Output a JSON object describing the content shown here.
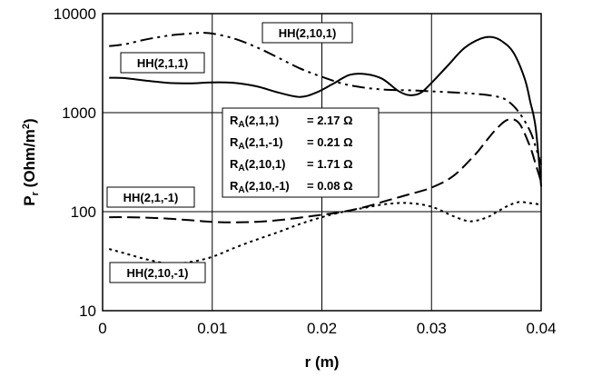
{
  "chart_data": {
    "type": "line",
    "xlabel": "r (m)",
    "ylabel": "P",
    "ylabel_sub": "r",
    "ylabel_unit": " (Ohm/m",
    "ylabel_unit_sup": "2",
    "ylabel_close": ")",
    "xlim": [
      0,
      0.04
    ],
    "ylim": [
      10,
      10000
    ],
    "yscale": "log",
    "grid": true,
    "xticks": [
      0,
      0.01,
      0.02,
      0.03,
      0.04
    ],
    "xtick_labels": [
      "0",
      "0.01",
      "0.02",
      "0.03",
      "0.04"
    ],
    "yticks": [
      10,
      100,
      1000,
      10000
    ],
    "ytick_labels": [
      "10",
      "100",
      "1000",
      "10000"
    ],
    "series": [
      {
        "name": "HH(2,1,1)",
        "dash": "solid",
        "points": [
          [
            0.0006,
            2250
          ],
          [
            0.002,
            2230
          ],
          [
            0.004,
            2100
          ],
          [
            0.006,
            2000
          ],
          [
            0.008,
            1980
          ],
          [
            0.01,
            2020
          ],
          [
            0.012,
            2000
          ],
          [
            0.014,
            1850
          ],
          [
            0.016,
            1600
          ],
          [
            0.018,
            1440
          ],
          [
            0.0195,
            1600
          ],
          [
            0.021,
            1950
          ],
          [
            0.0225,
            2400
          ],
          [
            0.024,
            2450
          ],
          [
            0.0255,
            2200
          ],
          [
            0.027,
            1650
          ],
          [
            0.028,
            1500
          ],
          [
            0.029,
            1580
          ],
          [
            0.03,
            2000
          ],
          [
            0.0315,
            3000
          ],
          [
            0.033,
            4500
          ],
          [
            0.0345,
            5600
          ],
          [
            0.0355,
            5800
          ],
          [
            0.0365,
            5200
          ],
          [
            0.0375,
            4000
          ],
          [
            0.0385,
            2200
          ],
          [
            0.039,
            1300
          ],
          [
            0.0395,
            700
          ],
          [
            0.04,
            180
          ]
        ]
      },
      {
        "name": "HH(2,10,1)",
        "dash": "dashdotdot",
        "points": [
          [
            0.0006,
            4700
          ],
          [
            0.002,
            4900
          ],
          [
            0.004,
            5500
          ],
          [
            0.006,
            6000
          ],
          [
            0.008,
            6300
          ],
          [
            0.009,
            6400
          ],
          [
            0.01,
            6300
          ],
          [
            0.012,
            5600
          ],
          [
            0.014,
            4600
          ],
          [
            0.016,
            3600
          ],
          [
            0.018,
            2800
          ],
          [
            0.02,
            2300
          ],
          [
            0.022,
            1950
          ],
          [
            0.024,
            1780
          ],
          [
            0.026,
            1700
          ],
          [
            0.028,
            1680
          ],
          [
            0.03,
            1640
          ],
          [
            0.032,
            1600
          ],
          [
            0.034,
            1550
          ],
          [
            0.036,
            1450
          ],
          [
            0.037,
            1300
          ],
          [
            0.038,
            1000
          ],
          [
            0.039,
            650
          ],
          [
            0.0395,
            450
          ],
          [
            0.04,
            300
          ]
        ]
      },
      {
        "name": "HH(2,1,-1)",
        "dash": "dash",
        "points": [
          [
            0.0006,
            88
          ],
          [
            0.002,
            88
          ],
          [
            0.004,
            87
          ],
          [
            0.006,
            85
          ],
          [
            0.008,
            82
          ],
          [
            0.01,
            79
          ],
          [
            0.012,
            78
          ],
          [
            0.014,
            79
          ],
          [
            0.016,
            82
          ],
          [
            0.018,
            87
          ],
          [
            0.02,
            93
          ],
          [
            0.022,
            100
          ],
          [
            0.024,
            112
          ],
          [
            0.026,
            130
          ],
          [
            0.028,
            150
          ],
          [
            0.03,
            175
          ],
          [
            0.032,
            230
          ],
          [
            0.034,
            380
          ],
          [
            0.035,
            520
          ],
          [
            0.036,
            700
          ],
          [
            0.037,
            850
          ],
          [
            0.038,
            780
          ],
          [
            0.039,
            450
          ],
          [
            0.0395,
            300
          ],
          [
            0.04,
            200
          ]
        ]
      },
      {
        "name": "HH(2,10,-1)",
        "dash": "dot",
        "points": [
          [
            0.0006,
            42
          ],
          [
            0.002,
            38
          ],
          [
            0.004,
            33
          ],
          [
            0.006,
            30
          ],
          [
            0.008,
            31
          ],
          [
            0.01,
            35
          ],
          [
            0.012,
            43
          ],
          [
            0.014,
            52
          ],
          [
            0.016,
            62
          ],
          [
            0.018,
            75
          ],
          [
            0.02,
            88
          ],
          [
            0.022,
            100
          ],
          [
            0.024,
            110
          ],
          [
            0.026,
            120
          ],
          [
            0.028,
            122
          ],
          [
            0.03,
            112
          ],
          [
            0.032,
            90
          ],
          [
            0.0335,
            80
          ],
          [
            0.035,
            87
          ],
          [
            0.036,
            100
          ],
          [
            0.037,
            115
          ],
          [
            0.038,
            125
          ],
          [
            0.039,
            122
          ],
          [
            0.04,
            118
          ]
        ]
      }
    ],
    "series_labels": [
      "HH(2,1,1)",
      "HH(2,10,1)",
      "HH(2,1,-1)",
      "HH(2,10,-1)"
    ],
    "annotation": {
      "lines": [
        {
          "name": "R",
          "sub": "A",
          "args": "(2,1,1)",
          "value": "= 2.17 Ω"
        },
        {
          "name": "R",
          "sub": "A",
          "args": "(2,1,-1)",
          "value": "= 0.21 Ω"
        },
        {
          "name": "R",
          "sub": "A",
          "args": "(2,10,1)",
          "value": "= 1.71 Ω"
        },
        {
          "name": "R",
          "sub": "A",
          "args": "(2,10,-1)",
          "value": "= 0.08 Ω"
        }
      ]
    }
  }
}
